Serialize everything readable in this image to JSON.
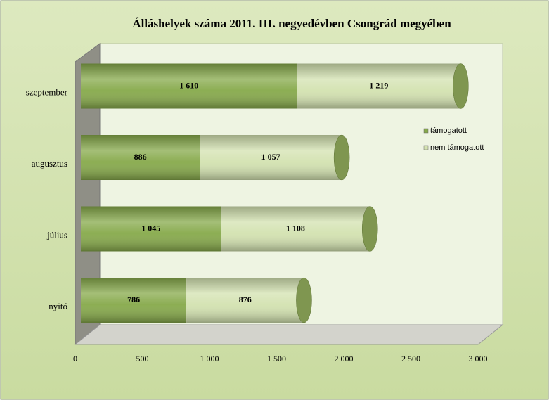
{
  "chart_data": {
    "type": "bar",
    "orientation": "horizontal",
    "stacked": true,
    "title": "Álláshelyek száma 2011. III. negyedévben Csongrád megyében",
    "categories": [
      "nyitó",
      "július",
      "augusztus",
      "szeptember"
    ],
    "series": [
      {
        "name": "támogatott",
        "color": "#86a94a",
        "values": [
          786,
          1045,
          886,
          1610
        ],
        "value_labels": [
          "786",
          "1 045",
          "886",
          "1 610"
        ]
      },
      {
        "name": "nem támogatott",
        "color": "#d3e2b0",
        "values": [
          876,
          1108,
          1057,
          1219
        ],
        "value_labels": [
          "876",
          "1 108",
          "1 057",
          "1 219"
        ]
      }
    ],
    "xlim": [
      0,
      3000
    ],
    "xticks": [
      0,
      500,
      {
        "value": 1000,
        "label": "1 000"
      },
      {
        "value": 1500,
        "label": "1 500"
      },
      {
        "value": 2000,
        "label": "2 000"
      },
      {
        "value": 2500,
        "label": "2 500"
      },
      {
        "value": 3000,
        "label": "3 000"
      }
    ],
    "legend": "right"
  }
}
